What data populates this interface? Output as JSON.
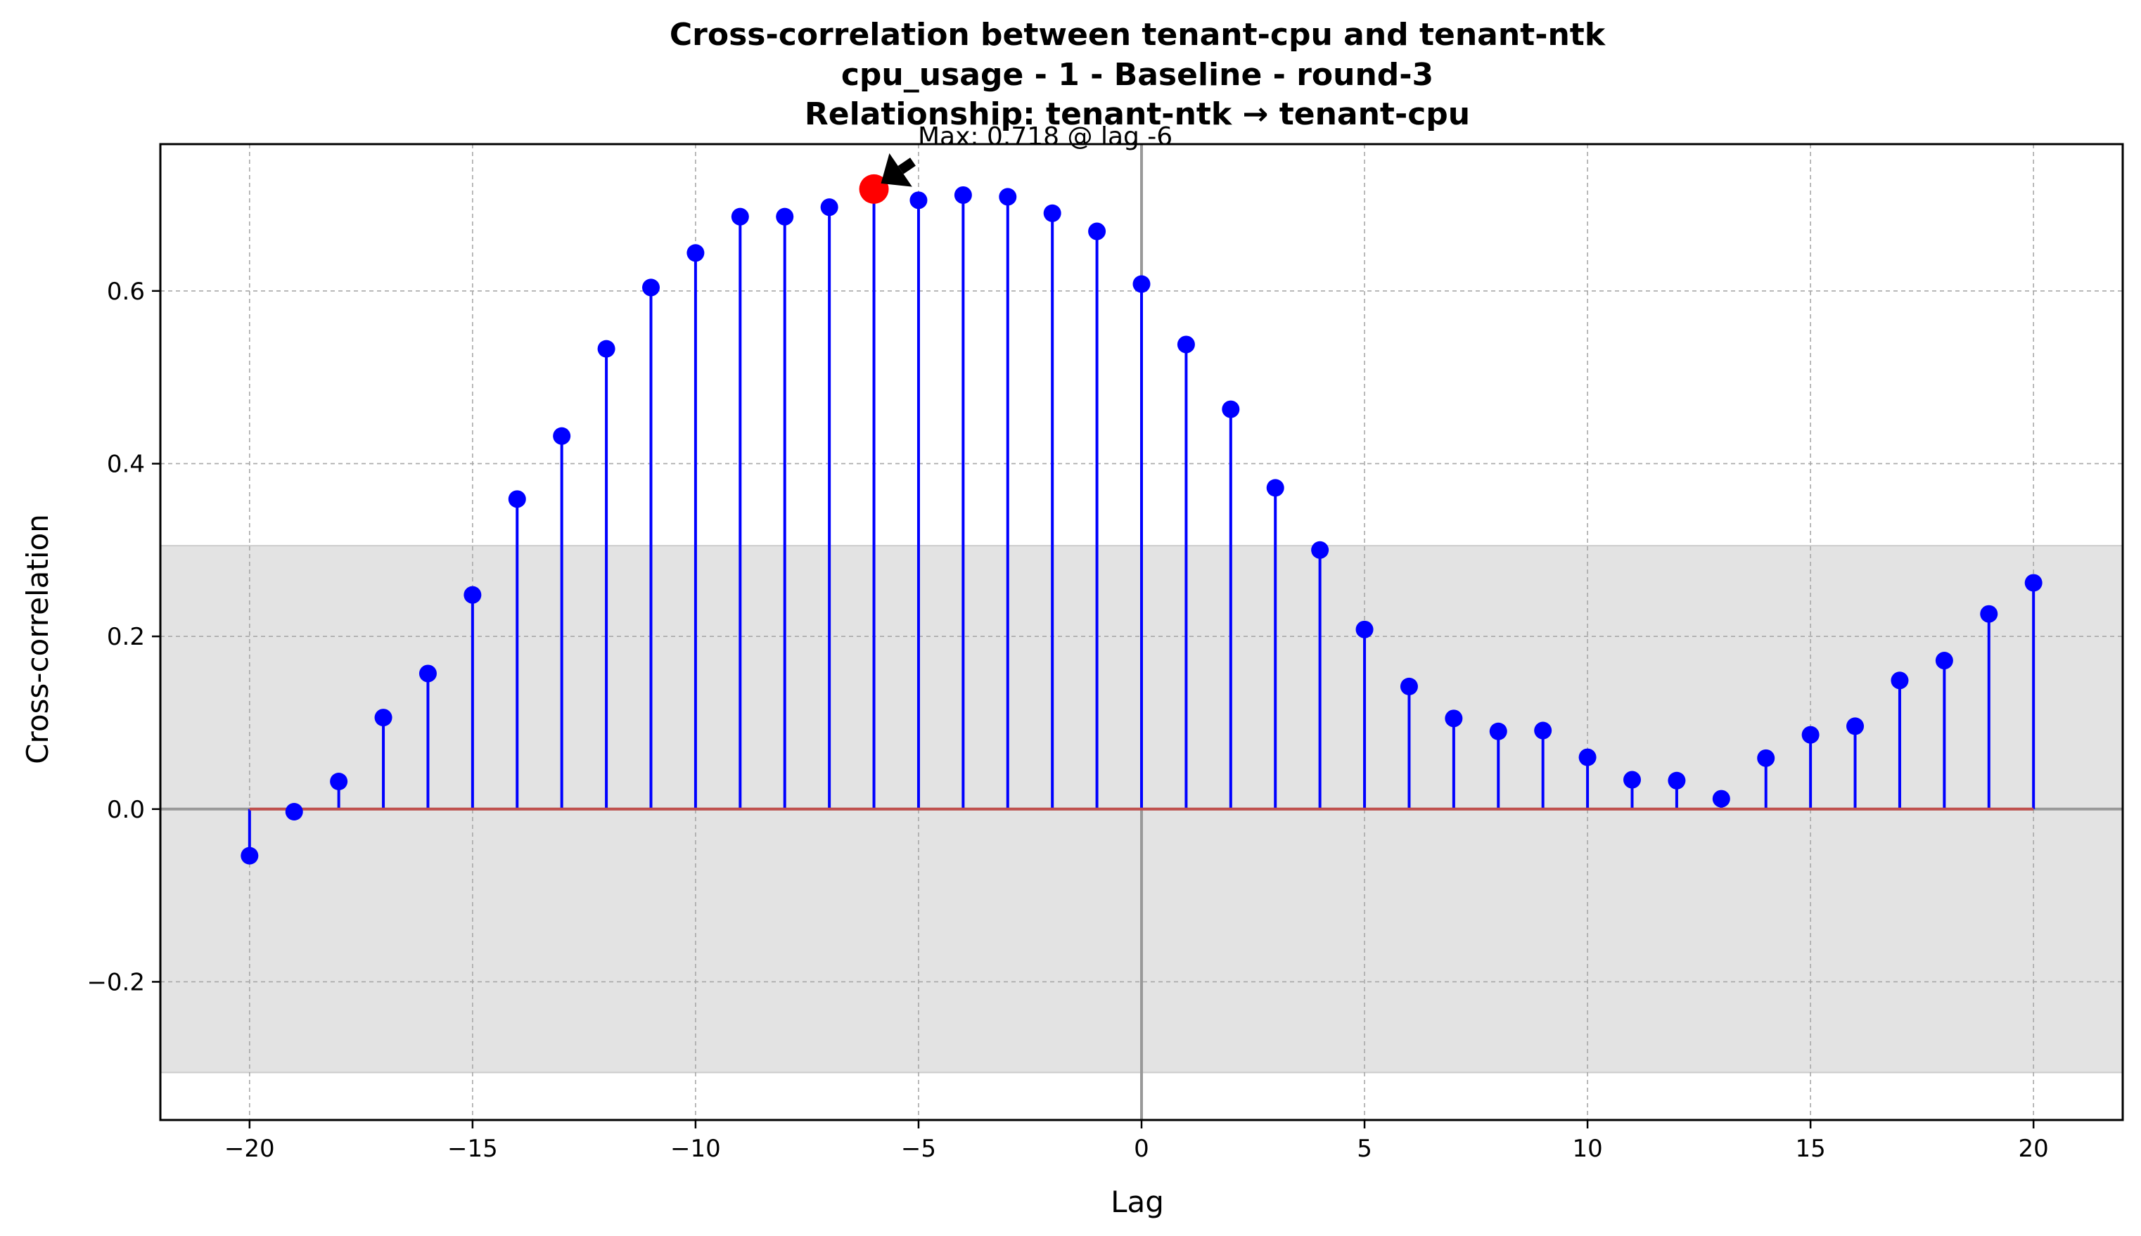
{
  "chart_data": {
    "type": "stem",
    "title": [
      "Cross-correlation between tenant-cpu and tenant-ntk",
      "cpu_usage - 1 - Baseline - round-3",
      "Relationship: tenant-ntk → tenant-cpu"
    ],
    "xlabel": "Lag",
    "ylabel": "Cross-correlation",
    "xlim": [
      -22,
      22
    ],
    "ylim": [
      -0.36,
      0.77
    ],
    "xticks": [
      -20,
      -15,
      -10,
      -5,
      0,
      5,
      10,
      15,
      20
    ],
    "xtick_labels": [
      "−20",
      "−15",
      "−10",
      "−5",
      "0",
      "5",
      "10",
      "15",
      "20"
    ],
    "yticks": [
      -0.2,
      0.0,
      0.2,
      0.4,
      0.6
    ],
    "ytick_labels": [
      "−0.2",
      "0.0",
      "0.2",
      "0.4",
      "0.6"
    ],
    "grid": true,
    "confidence_band": [
      -0.305,
      0.305
    ],
    "series": [
      {
        "x": [
          -20,
          -19,
          -18,
          -17,
          -16,
          -15,
          -14,
          -13,
          -12,
          -11,
          -10,
          -9,
          -8,
          -7,
          -6,
          -5,
          -4,
          -3,
          -2,
          -1,
          0,
          1,
          2,
          3,
          4,
          5,
          6,
          7,
          8,
          9,
          10,
          11,
          12,
          13,
          14,
          15,
          16,
          17,
          18,
          19,
          20
        ],
        "values": [
          -0.054,
          -0.003,
          0.032,
          0.106,
          0.157,
          0.248,
          0.359,
          0.432,
          0.533,
          0.604,
          0.644,
          0.686,
          0.686,
          0.697,
          0.718,
          0.705,
          0.711,
          0.709,
          0.69,
          0.669,
          0.608,
          0.538,
          0.463,
          0.372,
          0.3,
          0.208,
          0.142,
          0.105,
          0.09,
          0.091,
          0.06,
          0.034,
          0.033,
          0.012,
          0.059,
          0.086,
          0.096,
          0.149,
          0.172,
          0.226,
          0.262
        ]
      }
    ],
    "max_point": {
      "x": -6,
      "y": 0.718
    },
    "annotation": "Max: 0.718 @ lag -6",
    "colors": {
      "stem": "#0000ff",
      "marker": "#0000ff",
      "max_marker": "#ff0000",
      "baseline": "#c0504d",
      "band": "#e3e3e3",
      "zero_vline": "#999999"
    }
  }
}
